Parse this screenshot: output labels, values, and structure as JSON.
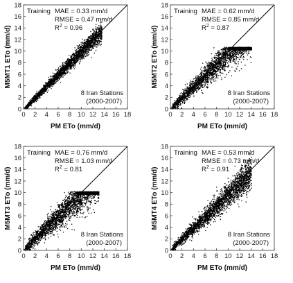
{
  "chart_data": [
    {
      "type": "scatter",
      "panel": "M5MT1",
      "xlabel": "PM ETo (mm/d)",
      "ylabel": "M5MT1 ETo (mm/d)",
      "xlim": [
        0,
        18
      ],
      "ylim": [
        0,
        18
      ],
      "x_ticks": [
        0,
        2,
        4,
        6,
        8,
        10,
        12,
        14,
        16,
        18
      ],
      "y_ticks": [
        0,
        2,
        4,
        6,
        8,
        10,
        12,
        14,
        16,
        18
      ],
      "reference_line": "1:1",
      "annotations": {
        "phase": "Training",
        "mae": "MAE = 0.33 mm/d",
        "rmse": "RMSE = 0.47 mm/d",
        "r2_prefix": "R",
        "r2_sup": "2",
        "r2_value": " = 0.96",
        "stations": "8 Iran Stations",
        "period": "(2000-2007)"
      },
      "cloud": {
        "x_range": [
          0.2,
          13.5
        ],
        "slope": 1.0,
        "intercept": 0.0,
        "spread": 0.47,
        "cap": null
      }
    },
    {
      "type": "scatter",
      "panel": "M5MT2",
      "xlabel": "PM ETo (mm/d)",
      "ylabel": "M5MT2 ETo (mm/d)",
      "xlim": [
        0,
        18
      ],
      "ylim": [
        0,
        18
      ],
      "x_ticks": [
        0,
        2,
        4,
        6,
        8,
        10,
        12,
        14,
        16,
        18
      ],
      "y_ticks": [
        0,
        2,
        4,
        6,
        8,
        10,
        12,
        14,
        16,
        18
      ],
      "reference_line": "1:1",
      "annotations": {
        "phase": "Training",
        "mae": "MAE = 0.62 mm/d",
        "rmse": "RMSE = 0.85 mm/d",
        "r2_prefix": "R",
        "r2_sup": "2",
        "r2_value": " = 0.87",
        "stations": "8 Iran Stations",
        "period": "(2000-2007)"
      },
      "cloud": {
        "x_range": [
          0.2,
          14.0
        ],
        "slope": 0.95,
        "intercept": 0.1,
        "spread": 0.85,
        "cap": 10.5
      }
    },
    {
      "type": "scatter",
      "panel": "M5MT3",
      "xlabel": "PM ETo (mm/d)",
      "ylabel": "M5MT3 ETo (mm/d)",
      "xlim": [
        0,
        18
      ],
      "ylim": [
        0,
        18
      ],
      "x_ticks": [
        0,
        2,
        4,
        6,
        8,
        10,
        12,
        14,
        16,
        18
      ],
      "y_ticks": [
        0,
        2,
        4,
        6,
        8,
        10,
        12,
        14,
        16,
        18
      ],
      "reference_line": "1:1",
      "annotations": {
        "phase": "Training",
        "mae": "MAE = 0.76 mm/d",
        "rmse": "RMSE = 1.03 mm/d",
        "r2_prefix": "R",
        "r2_sup": "2",
        "r2_value": " = 0.81",
        "stations": "8 Iran Stations",
        "period": "(2000-2007)"
      },
      "cloud": {
        "x_range": [
          0.2,
          13.0
        ],
        "slope": 0.95,
        "intercept": 0.2,
        "spread": 1.03,
        "cap": 10.0
      }
    },
    {
      "type": "scatter",
      "panel": "M5MT4",
      "xlabel": "PM ETo (mm/d)",
      "ylabel": "M5MT4 ETo (mm/d)",
      "xlim": [
        0,
        18
      ],
      "ylim": [
        0,
        18
      ],
      "x_ticks": [
        0,
        2,
        4,
        6,
        8,
        10,
        12,
        14,
        16,
        18
      ],
      "y_ticks": [
        0,
        2,
        4,
        6,
        8,
        10,
        12,
        14,
        16,
        18
      ],
      "reference_line": "1:1",
      "annotations": {
        "phase": "Training",
        "mae": "MAE = 0.53 mm/d",
        "rmse": "RMSE = 0.73 mm/d",
        "r2_prefix": "R",
        "r2_sup": "2",
        "r2_value": " = 0.91",
        "stations": "8 Iran Stations",
        "period": "(2000-2007)"
      },
      "cloud": {
        "x_range": [
          0.2,
          14.0
        ],
        "slope": 0.95,
        "intercept": 0.15,
        "spread": 0.73,
        "cap": null
      }
    }
  ]
}
